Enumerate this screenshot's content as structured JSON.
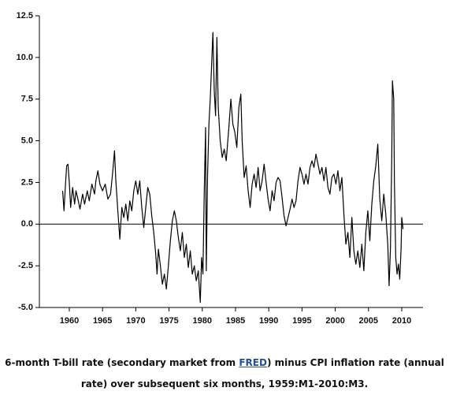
{
  "chart_data": {
    "type": "line",
    "x": [
      1959.0,
      1959.2,
      1959.4,
      1959.6,
      1959.8,
      1960.0,
      1960.2,
      1960.5,
      1960.8,
      1961.0,
      1961.3,
      1961.6,
      1962.0,
      1962.3,
      1962.7,
      1963.0,
      1963.4,
      1963.8,
      1964.0,
      1964.3,
      1964.6,
      1965.0,
      1965.4,
      1965.8,
      1966.2,
      1966.5,
      1966.8,
      1967.0,
      1967.3,
      1967.6,
      1967.9,
      1968.2,
      1968.5,
      1968.8,
      1969.1,
      1969.4,
      1969.7,
      1970.0,
      1970.3,
      1970.6,
      1970.9,
      1971.2,
      1971.5,
      1971.8,
      1972.1,
      1972.4,
      1972.7,
      1973.0,
      1973.2,
      1973.4,
      1973.7,
      1974.0,
      1974.3,
      1974.6,
      1974.9,
      1975.2,
      1975.5,
      1975.8,
      1976.1,
      1976.4,
      1976.7,
      1977.0,
      1977.3,
      1977.6,
      1977.9,
      1978.2,
      1978.5,
      1978.8,
      1979.1,
      1979.4,
      1979.7,
      1979.9,
      1980.1,
      1980.3,
      1980.5,
      1980.6,
      1980.8,
      1981.0,
      1981.2,
      1981.4,
      1981.6,
      1981.8,
      1982.0,
      1982.2,
      1982.4,
      1982.7,
      1983.0,
      1983.3,
      1983.6,
      1984.0,
      1984.3,
      1984.6,
      1984.9,
      1985.2,
      1985.5,
      1985.8,
      1986.0,
      1986.3,
      1986.6,
      1986.9,
      1987.2,
      1987.5,
      1987.8,
      1988.1,
      1988.4,
      1988.7,
      1989.0,
      1989.3,
      1989.6,
      1989.9,
      1990.2,
      1990.5,
      1990.8,
      1991.1,
      1991.4,
      1991.7,
      1992.0,
      1992.3,
      1992.6,
      1992.9,
      1993.2,
      1993.5,
      1993.8,
      1994.1,
      1994.4,
      1994.7,
      1995.0,
      1995.3,
      1995.6,
      1995.9,
      1996.2,
      1996.5,
      1996.8,
      1997.1,
      1997.4,
      1997.7,
      1998.0,
      1998.3,
      1998.6,
      1998.9,
      1999.2,
      1999.5,
      1999.8,
      2000.1,
      2000.4,
      2000.7,
      2001.0,
      2001.3,
      2001.6,
      2001.9,
      2002.2,
      2002.5,
      2002.8,
      2003.1,
      2003.4,
      2003.7,
      2004.0,
      2004.3,
      2004.6,
      2004.9,
      2005.2,
      2005.5,
      2005.8,
      2006.1,
      2006.4,
      2006.7,
      2007.0,
      2007.3,
      2007.6,
      2007.9,
      2008.1,
      2008.3,
      2008.5,
      2008.6,
      2008.8,
      2008.9,
      2009.1,
      2009.3,
      2009.5,
      2009.7,
      2009.9,
      2010.0,
      2010.2
    ],
    "series": [
      {
        "color": "#000000",
        "values": [
          2.0,
          0.8,
          2.2,
          3.5,
          3.6,
          2.5,
          1.0,
          2.2,
          1.2,
          2.0,
          1.5,
          0.9,
          1.8,
          1.2,
          2.0,
          1.4,
          2.4,
          1.8,
          2.6,
          3.2,
          2.4,
          2.0,
          2.4,
          1.5,
          1.8,
          3.0,
          4.4,
          2.6,
          0.8,
          -0.9,
          1.0,
          0.4,
          1.2,
          0.2,
          1.4,
          0.8,
          2.0,
          2.6,
          1.8,
          2.6,
          1.0,
          -0.2,
          1.0,
          2.2,
          1.8,
          0.5,
          -0.5,
          -1.8,
          -3.0,
          -1.5,
          -2.5,
          -3.6,
          -3.0,
          -3.9,
          -2.5,
          -1.0,
          0.2,
          0.8,
          0.2,
          -0.8,
          -1.6,
          -0.5,
          -2.0,
          -1.2,
          -2.6,
          -1.6,
          -3.0,
          -2.5,
          -3.4,
          -2.8,
          -4.7,
          -2.0,
          -3.0,
          2.0,
          5.8,
          -2.8,
          3.0,
          6.0,
          7.5,
          9.5,
          11.5,
          8.0,
          6.5,
          11.2,
          7.0,
          5.0,
          4.0,
          4.5,
          3.8,
          5.8,
          7.5,
          6.0,
          5.5,
          4.6,
          7.0,
          7.8,
          5.0,
          2.8,
          3.5,
          2.0,
          1.0,
          2.4,
          3.0,
          2.2,
          3.4,
          2.0,
          2.6,
          3.6,
          2.5,
          1.5,
          0.8,
          2.0,
          1.4,
          2.5,
          2.8,
          2.6,
          1.6,
          0.5,
          -0.1,
          0.4,
          0.9,
          1.5,
          1.0,
          1.4,
          2.6,
          3.4,
          3.0,
          2.4,
          3.0,
          2.4,
          3.4,
          3.8,
          3.4,
          4.2,
          3.6,
          3.0,
          3.4,
          2.6,
          3.4,
          2.2,
          1.8,
          2.8,
          3.0,
          2.4,
          3.2,
          2.0,
          2.8,
          0.6,
          -1.2,
          -0.5,
          -2.0,
          0.4,
          -1.6,
          -2.4,
          -1.6,
          -2.6,
          -1.2,
          -2.8,
          -0.5,
          0.8,
          -1.0,
          1.2,
          2.6,
          3.5,
          4.8,
          1.5,
          0.2,
          1.8,
          0.6,
          -1.2,
          -3.7,
          -1.5,
          4.0,
          8.6,
          7.5,
          2.5,
          -2.0,
          -3.0,
          -2.4,
          -3.3,
          -1.5,
          0.4,
          -0.3
        ]
      }
    ],
    "xlim": [
      1955.5,
      2013.2
    ],
    "ylim": [
      -5.0,
      12.5
    ],
    "xticks": [
      1960,
      1965,
      1970,
      1975,
      1980,
      1985,
      1990,
      1995,
      2000,
      2005,
      2010
    ],
    "yticks": [
      12.5,
      {
        "value": 10,
        "label": "10.0"
      },
      7.5,
      {
        "value": 5,
        "label": "5.0"
      },
      2.5,
      {
        "value": 0,
        "label": "0.0"
      },
      -2.5,
      {
        "value": -5,
        "label": "-5.0"
      }
    ],
    "caption": {
      "before": "6-month T-bill rate (secondary market from ",
      "link": "FRED",
      "after": ") minus CPI inflation rate (annual rate) over subsequent six months, 1959:M1-2010:M3."
    }
  }
}
